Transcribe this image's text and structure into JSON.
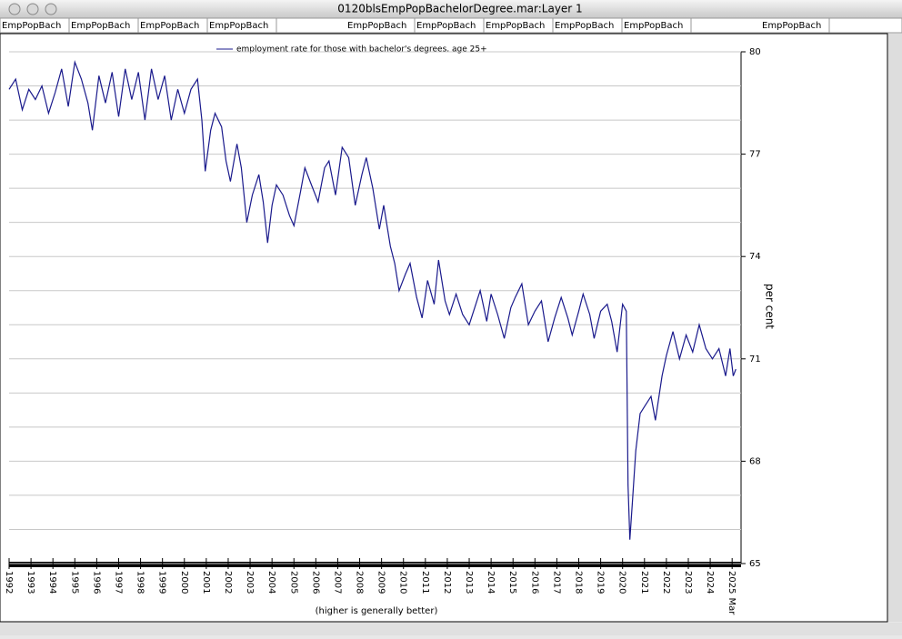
{
  "window": {
    "title": "0120blsEmpPopBachelorDegree.mar:Layer 1",
    "tabs": [
      "EmpPopBach",
      "EmpPopBach",
      "EmpPopBach",
      "EmpPopBach",
      "EmpPopBach",
      "EmpPopBach",
      "EmpPopBach",
      "EmpPopBach",
      "EmpPopBach",
      "EmpPopBach"
    ]
  },
  "chart_data": {
    "type": "line",
    "y_label": "per cent",
    "footnote": "(higher is generally better)",
    "last_tick_note": "Mar",
    "xlim": [
      1992,
      2025.2
    ],
    "xticks": [
      1992,
      1993,
      1994,
      1995,
      1996,
      1997,
      1998,
      1999,
      2000,
      2001,
      2002,
      2003,
      2004,
      2005,
      2006,
      2007,
      2008,
      2009,
      2010,
      2011,
      2012,
      2013,
      2014,
      2015,
      2016,
      2017,
      2018,
      2019,
      2020,
      2021,
      2022,
      2023,
      2024,
      2025
    ],
    "ylim": [
      65,
      80
    ],
    "yticks": [
      65,
      68,
      71,
      74,
      77,
      80
    ],
    "minor_yticks": [
      65,
      66,
      67,
      68,
      69,
      70,
      71,
      72,
      73,
      74,
      75,
      76,
      77,
      78,
      79,
      80
    ],
    "grid": true,
    "legend": "top",
    "x": [
      1992.0,
      1992.3,
      1992.6,
      1992.9,
      1993.2,
      1993.5,
      1993.8,
      1994.1,
      1994.4,
      1994.7,
      1995.0,
      1995.3,
      1995.6,
      1995.8,
      1996.1,
      1996.4,
      1996.7,
      1997.0,
      1997.3,
      1997.6,
      1997.9,
      1998.2,
      1998.5,
      1998.8,
      1999.1,
      1999.4,
      1999.7,
      2000.0,
      2000.3,
      2000.6,
      2000.8,
      2000.95,
      2001.2,
      2001.4,
      2001.7,
      2001.9,
      2002.1,
      2002.4,
      2002.6,
      2002.85,
      2003.1,
      2003.4,
      2003.6,
      2003.8,
      2004.0,
      2004.2,
      2004.5,
      2004.8,
      2005.0,
      2005.3,
      2005.5,
      2005.8,
      2006.1,
      2006.4,
      2006.6,
      2006.9,
      2007.2,
      2007.5,
      2007.8,
      2008.1,
      2008.3,
      2008.6,
      2008.9,
      2009.1,
      2009.4,
      2009.6,
      2009.8,
      2010.1,
      2010.3,
      2010.6,
      2010.85,
      2011.1,
      2011.4,
      2011.6,
      2011.9,
      2012.1,
      2012.4,
      2012.7,
      2013.0,
      2013.3,
      2013.5,
      2013.8,
      2014.0,
      2014.3,
      2014.6,
      2014.9,
      2015.1,
      2015.4,
      2015.7,
      2016.0,
      2016.3,
      2016.6,
      2016.9,
      2017.2,
      2017.5,
      2017.7,
      2018.0,
      2018.2,
      2018.5,
      2018.7,
      2019.0,
      2019.3,
      2019.5,
      2019.75,
      2020.0,
      2020.17,
      2020.25,
      2020.33,
      2020.45,
      2020.6,
      2020.8,
      2021.0,
      2021.3,
      2021.5,
      2021.8,
      2022.0,
      2022.3,
      2022.6,
      2022.9,
      2023.2,
      2023.5,
      2023.8,
      2024.1,
      2024.4,
      2024.7,
      2024.9,
      2025.05,
      2025.17
    ],
    "series": [
      {
        "name": "employment rate for those with bachelor's degrees, age 25+",
        "color": "#1a1a8c",
        "values": [
          78.9,
          79.2,
          78.3,
          78.9,
          78.6,
          79.0,
          78.2,
          78.8,
          79.5,
          78.4,
          79.7,
          79.2,
          78.5,
          77.7,
          79.3,
          78.5,
          79.4,
          78.1,
          79.5,
          78.6,
          79.4,
          78.0,
          79.5,
          78.6,
          79.3,
          78.0,
          78.9,
          78.2,
          78.9,
          79.2,
          78.0,
          76.5,
          77.7,
          78.2,
          77.8,
          76.8,
          76.2,
          77.3,
          76.6,
          75.0,
          75.8,
          76.4,
          75.6,
          74.4,
          75.5,
          76.1,
          75.8,
          75.2,
          74.9,
          75.9,
          76.6,
          76.1,
          75.6,
          76.6,
          76.8,
          75.8,
          77.2,
          76.9,
          75.5,
          76.4,
          76.9,
          76.0,
          74.8,
          75.5,
          74.3,
          73.8,
          73.0,
          73.5,
          73.8,
          72.8,
          72.2,
          73.3,
          72.6,
          73.9,
          72.7,
          72.3,
          72.9,
          72.3,
          72.0,
          72.6,
          73.0,
          72.1,
          72.9,
          72.3,
          71.6,
          72.5,
          72.8,
          73.2,
          72.0,
          72.4,
          72.7,
          71.5,
          72.2,
          72.8,
          72.2,
          71.7,
          72.4,
          72.9,
          72.3,
          71.6,
          72.4,
          72.6,
          72.1,
          71.2,
          72.6,
          72.4,
          67.3,
          65.7,
          66.8,
          68.3,
          69.4,
          69.6,
          69.9,
          69.2,
          70.5,
          71.1,
          71.8,
          71.0,
          71.7,
          71.2,
          72.0,
          71.3,
          71.0,
          71.3,
          70.5,
          71.3,
          70.5,
          70.7
        ]
      }
    ]
  }
}
